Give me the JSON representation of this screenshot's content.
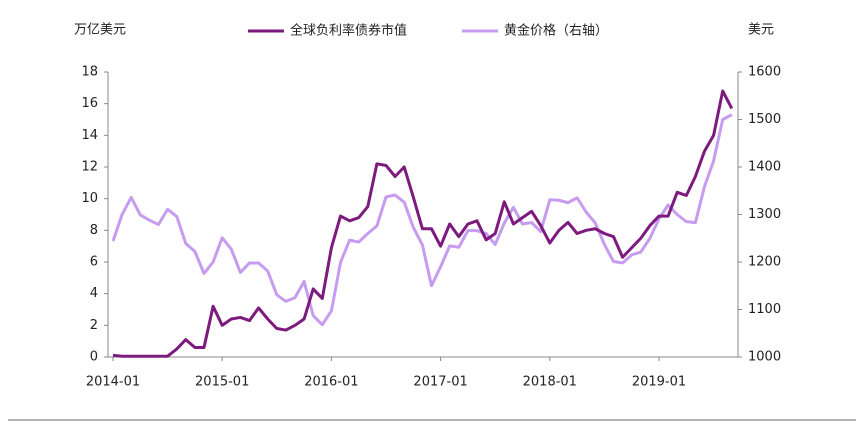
{
  "chart_data": {
    "type": "line",
    "ylabel": "万亿美元",
    "y2label": "美元",
    "categories": [
      "2014-01",
      null,
      null,
      null,
      null,
      null,
      null,
      null,
      null,
      null,
      null,
      null,
      "2015-01",
      null,
      null,
      null,
      null,
      null,
      null,
      null,
      null,
      null,
      null,
      null,
      "2016-01",
      null,
      null,
      null,
      null,
      null,
      null,
      null,
      null,
      null,
      null,
      null,
      "2017-01",
      null,
      null,
      null,
      null,
      null,
      null,
      null,
      null,
      null,
      null,
      null,
      "2018-01",
      null,
      null,
      null,
      null,
      null,
      null,
      null,
      null,
      null,
      null,
      null,
      "2019-01",
      null,
      null,
      null,
      null,
      null,
      null,
      null,
      null
    ],
    "series": [
      {
        "name": "全球负利率债券市值",
        "color": "#7d1a7d",
        "values": [
          0.1,
          0.05,
          0.05,
          0.05,
          0.05,
          0.05,
          0.05,
          0.5,
          1.1,
          0.6,
          0.6,
          3.2,
          2.0,
          2.4,
          2.5,
          2.3,
          3.1,
          2.4,
          1.8,
          1.7,
          2.0,
          2.4,
          4.3,
          3.7,
          6.9,
          8.9,
          8.6,
          8.8,
          9.5,
          12.2,
          12.1,
          11.4,
          12.0,
          10.1,
          8.1,
          8.1,
          7.0,
          8.4,
          7.6,
          8.4,
          8.6,
          7.4,
          7.8,
          9.8,
          8.4,
          8.8,
          9.2,
          8.3,
          7.2,
          8.0,
          8.5,
          7.8,
          8.0,
          8.1,
          7.8,
          7.6,
          6.3,
          6.9,
          7.5,
          8.3,
          8.9,
          8.9,
          10.4,
          10.2,
          11.4,
          13.0,
          14.0,
          16.8,
          15.7
        ]
      },
      {
        "name": "黄金价格（右轴）",
        "color": "#c69cf0",
        "axis": "y2",
        "values": [
          1244,
          1300,
          1336,
          1299,
          1288,
          1279,
          1311,
          1296,
          1239,
          1222,
          1176,
          1200,
          1251,
          1227,
          1178,
          1198,
          1198,
          1181,
          1131,
          1117,
          1125,
          1159,
          1087,
          1068,
          1097,
          1199,
          1246,
          1242,
          1260,
          1276,
          1337,
          1341,
          1326,
          1273,
          1236,
          1150,
          1190,
          1234,
          1231,
          1266,
          1266,
          1260,
          1237,
          1282,
          1315,
          1280,
          1283,
          1264,
          1331,
          1330,
          1325,
          1335,
          1305,
          1282,
          1237,
          1201,
          1198,
          1215,
          1221,
          1250,
          1291,
          1320,
          1300,
          1285,
          1283,
          1359,
          1413,
          1500,
          1510
        ]
      }
    ],
    "ylim": [
      0,
      18
    ],
    "yticks": [
      0,
      2,
      4,
      6,
      8,
      10,
      12,
      14,
      16,
      18
    ],
    "y2lim": [
      1000,
      1600
    ],
    "y2ticks": [
      1000,
      1100,
      1200,
      1300,
      1400,
      1500,
      1600
    ],
    "grid": false,
    "legend": "top"
  }
}
